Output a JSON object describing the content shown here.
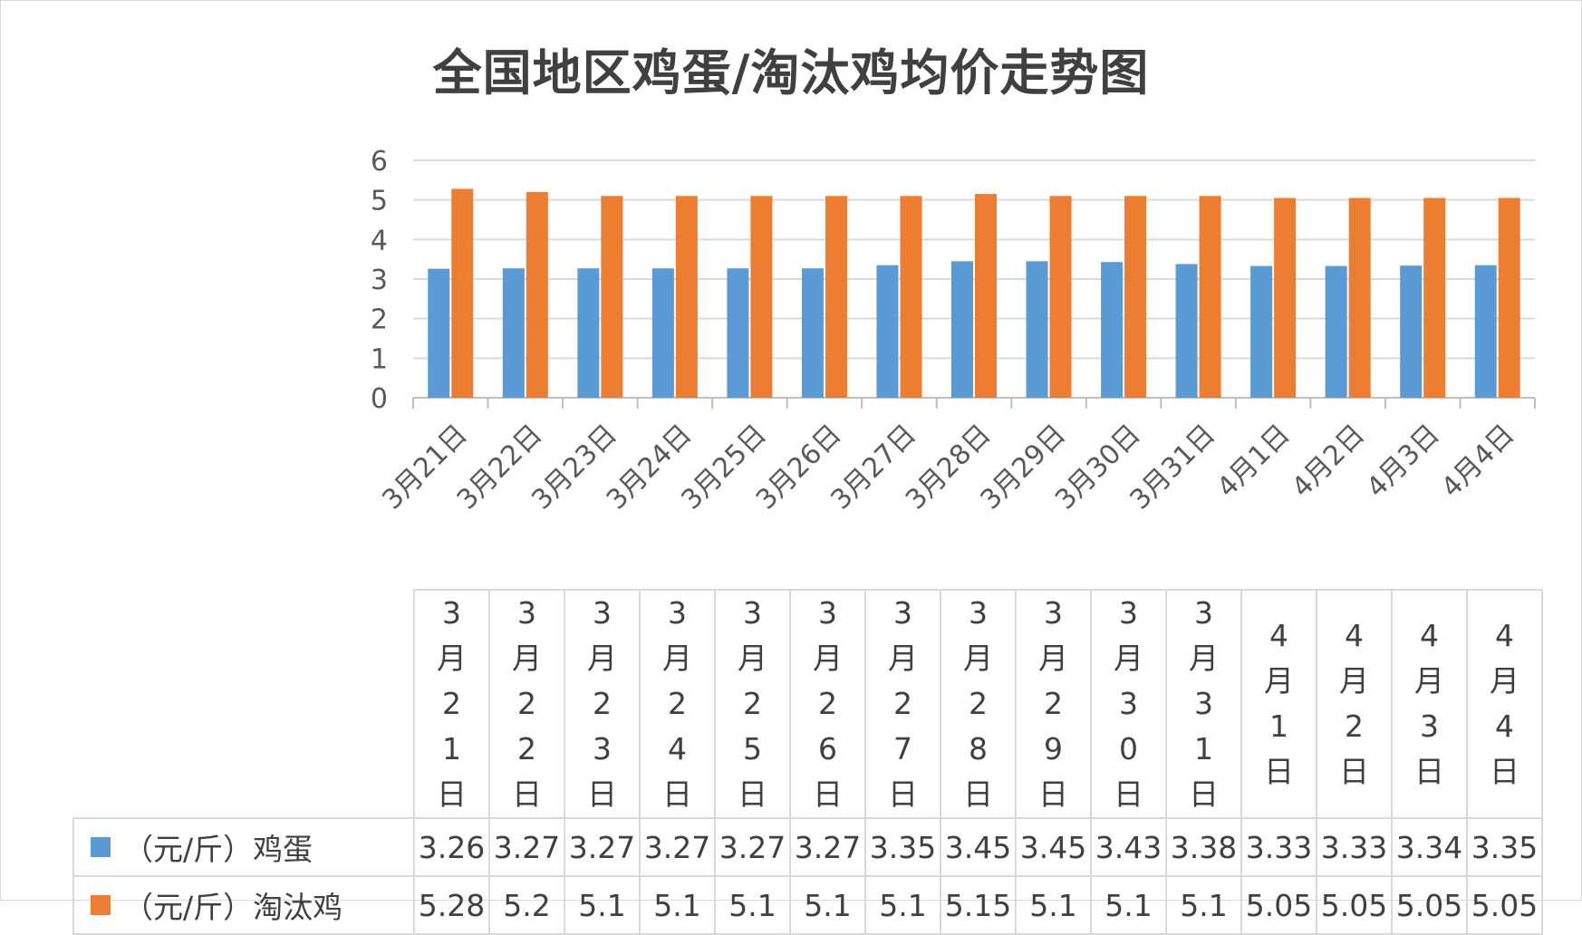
{
  "title": "全国地区鸡蛋/淘汰鸡均价走势图",
  "chart_data": {
    "type": "bar",
    "title": "全国地区鸡蛋/淘汰鸡均价走势图",
    "categories": [
      "3月21日",
      "3月22日",
      "3月23日",
      "3月24日",
      "3月25日",
      "3月26日",
      "3月27日",
      "3月28日",
      "3月29日",
      "3月30日",
      "3月31日",
      "4月1日",
      "4月2日",
      "4月3日",
      "4月4日"
    ],
    "series": [
      {
        "name": "（元/斤）鸡蛋",
        "color": "#5b9bd5",
        "values": [
          3.26,
          3.27,
          3.27,
          3.27,
          3.27,
          3.27,
          3.35,
          3.45,
          3.45,
          3.43,
          3.38,
          3.33,
          3.33,
          3.34,
          3.35
        ]
      },
      {
        "name": "（元/斤）淘汰鸡",
        "color": "#ed7d31",
        "values": [
          5.28,
          5.2,
          5.1,
          5.1,
          5.1,
          5.1,
          5.1,
          5.15,
          5.1,
          5.1,
          5.1,
          5.05,
          5.05,
          5.05,
          5.05
        ]
      }
    ],
    "ylim": [
      0,
      6
    ],
    "yticks": [
      0,
      1,
      2,
      3,
      4,
      5,
      6
    ],
    "grid": true,
    "legend": "data-table",
    "xlabel": "",
    "ylabel": ""
  },
  "table": {
    "headers": [
      "3月21日",
      "3月22日",
      "3月23日",
      "3月24日",
      "3月25日",
      "3月26日",
      "3月27日",
      "3月28日",
      "3月29日",
      "3月30日",
      "3月31日",
      "4月1日",
      "4月2日",
      "4月3日",
      "4月4日"
    ],
    "rows": [
      {
        "label": "（元/斤）鸡蛋",
        "color": "#5b9bd5",
        "values": [
          "3.26",
          "3.27",
          "3.27",
          "3.27",
          "3.27",
          "3.27",
          "3.35",
          "3.45",
          "3.45",
          "3.43",
          "3.38",
          "3.33",
          "3.33",
          "3.34",
          "3.35"
        ]
      },
      {
        "label": "（元/斤）淘汰鸡",
        "color": "#ed7d31",
        "values": [
          "5.28",
          "5.2",
          "5.1",
          "5.1",
          "5.1",
          "5.1",
          "5.1",
          "5.15",
          "5.1",
          "5.1",
          "5.1",
          "5.05",
          "5.05",
          "5.05",
          "5.05"
        ]
      }
    ]
  }
}
